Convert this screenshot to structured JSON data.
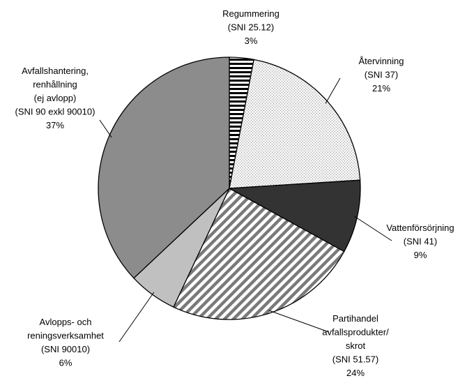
{
  "chart_data": {
    "type": "pie",
    "title": "",
    "slices": [
      {
        "lines": [
          "Regummering",
          "(SNI 25.12)",
          "3%"
        ],
        "value": 3,
        "fill": "pat-horiz"
      },
      {
        "lines": [
          "Återvinning",
          "(SNI 37)",
          "21%"
        ],
        "value": 21,
        "fill": "pat-dots"
      },
      {
        "lines": [
          "Vattenförsörjning",
          "(SNI 41)",
          "9%"
        ],
        "value": 9,
        "fill": "#333333"
      },
      {
        "lines": [
          "Partihandel",
          "avfallsprodukter/",
          "skrot",
          "(SNI 51.57)",
          "24%"
        ],
        "value": 24,
        "fill": "pat-diag"
      },
      {
        "lines": [
          "Avlopps- och",
          "reningsverksamhet",
          "(SNI 90010)",
          "6%"
        ],
        "value": 6,
        "fill": "#c0c0c0"
      },
      {
        "lines": [
          "Avfallshantering,",
          "renhållning",
          "(ej avlopp)",
          "(SNI 90 exkl 90010)",
          "37%"
        ],
        "value": 37,
        "fill": "#8c8c8c"
      }
    ],
    "start_angle_deg": 0,
    "direction": "clockwise",
    "colors": {
      "outline": "#000000",
      "dark": "#333333",
      "light_gray": "#c0c0c0",
      "mid_gray": "#8c8c8c"
    }
  }
}
